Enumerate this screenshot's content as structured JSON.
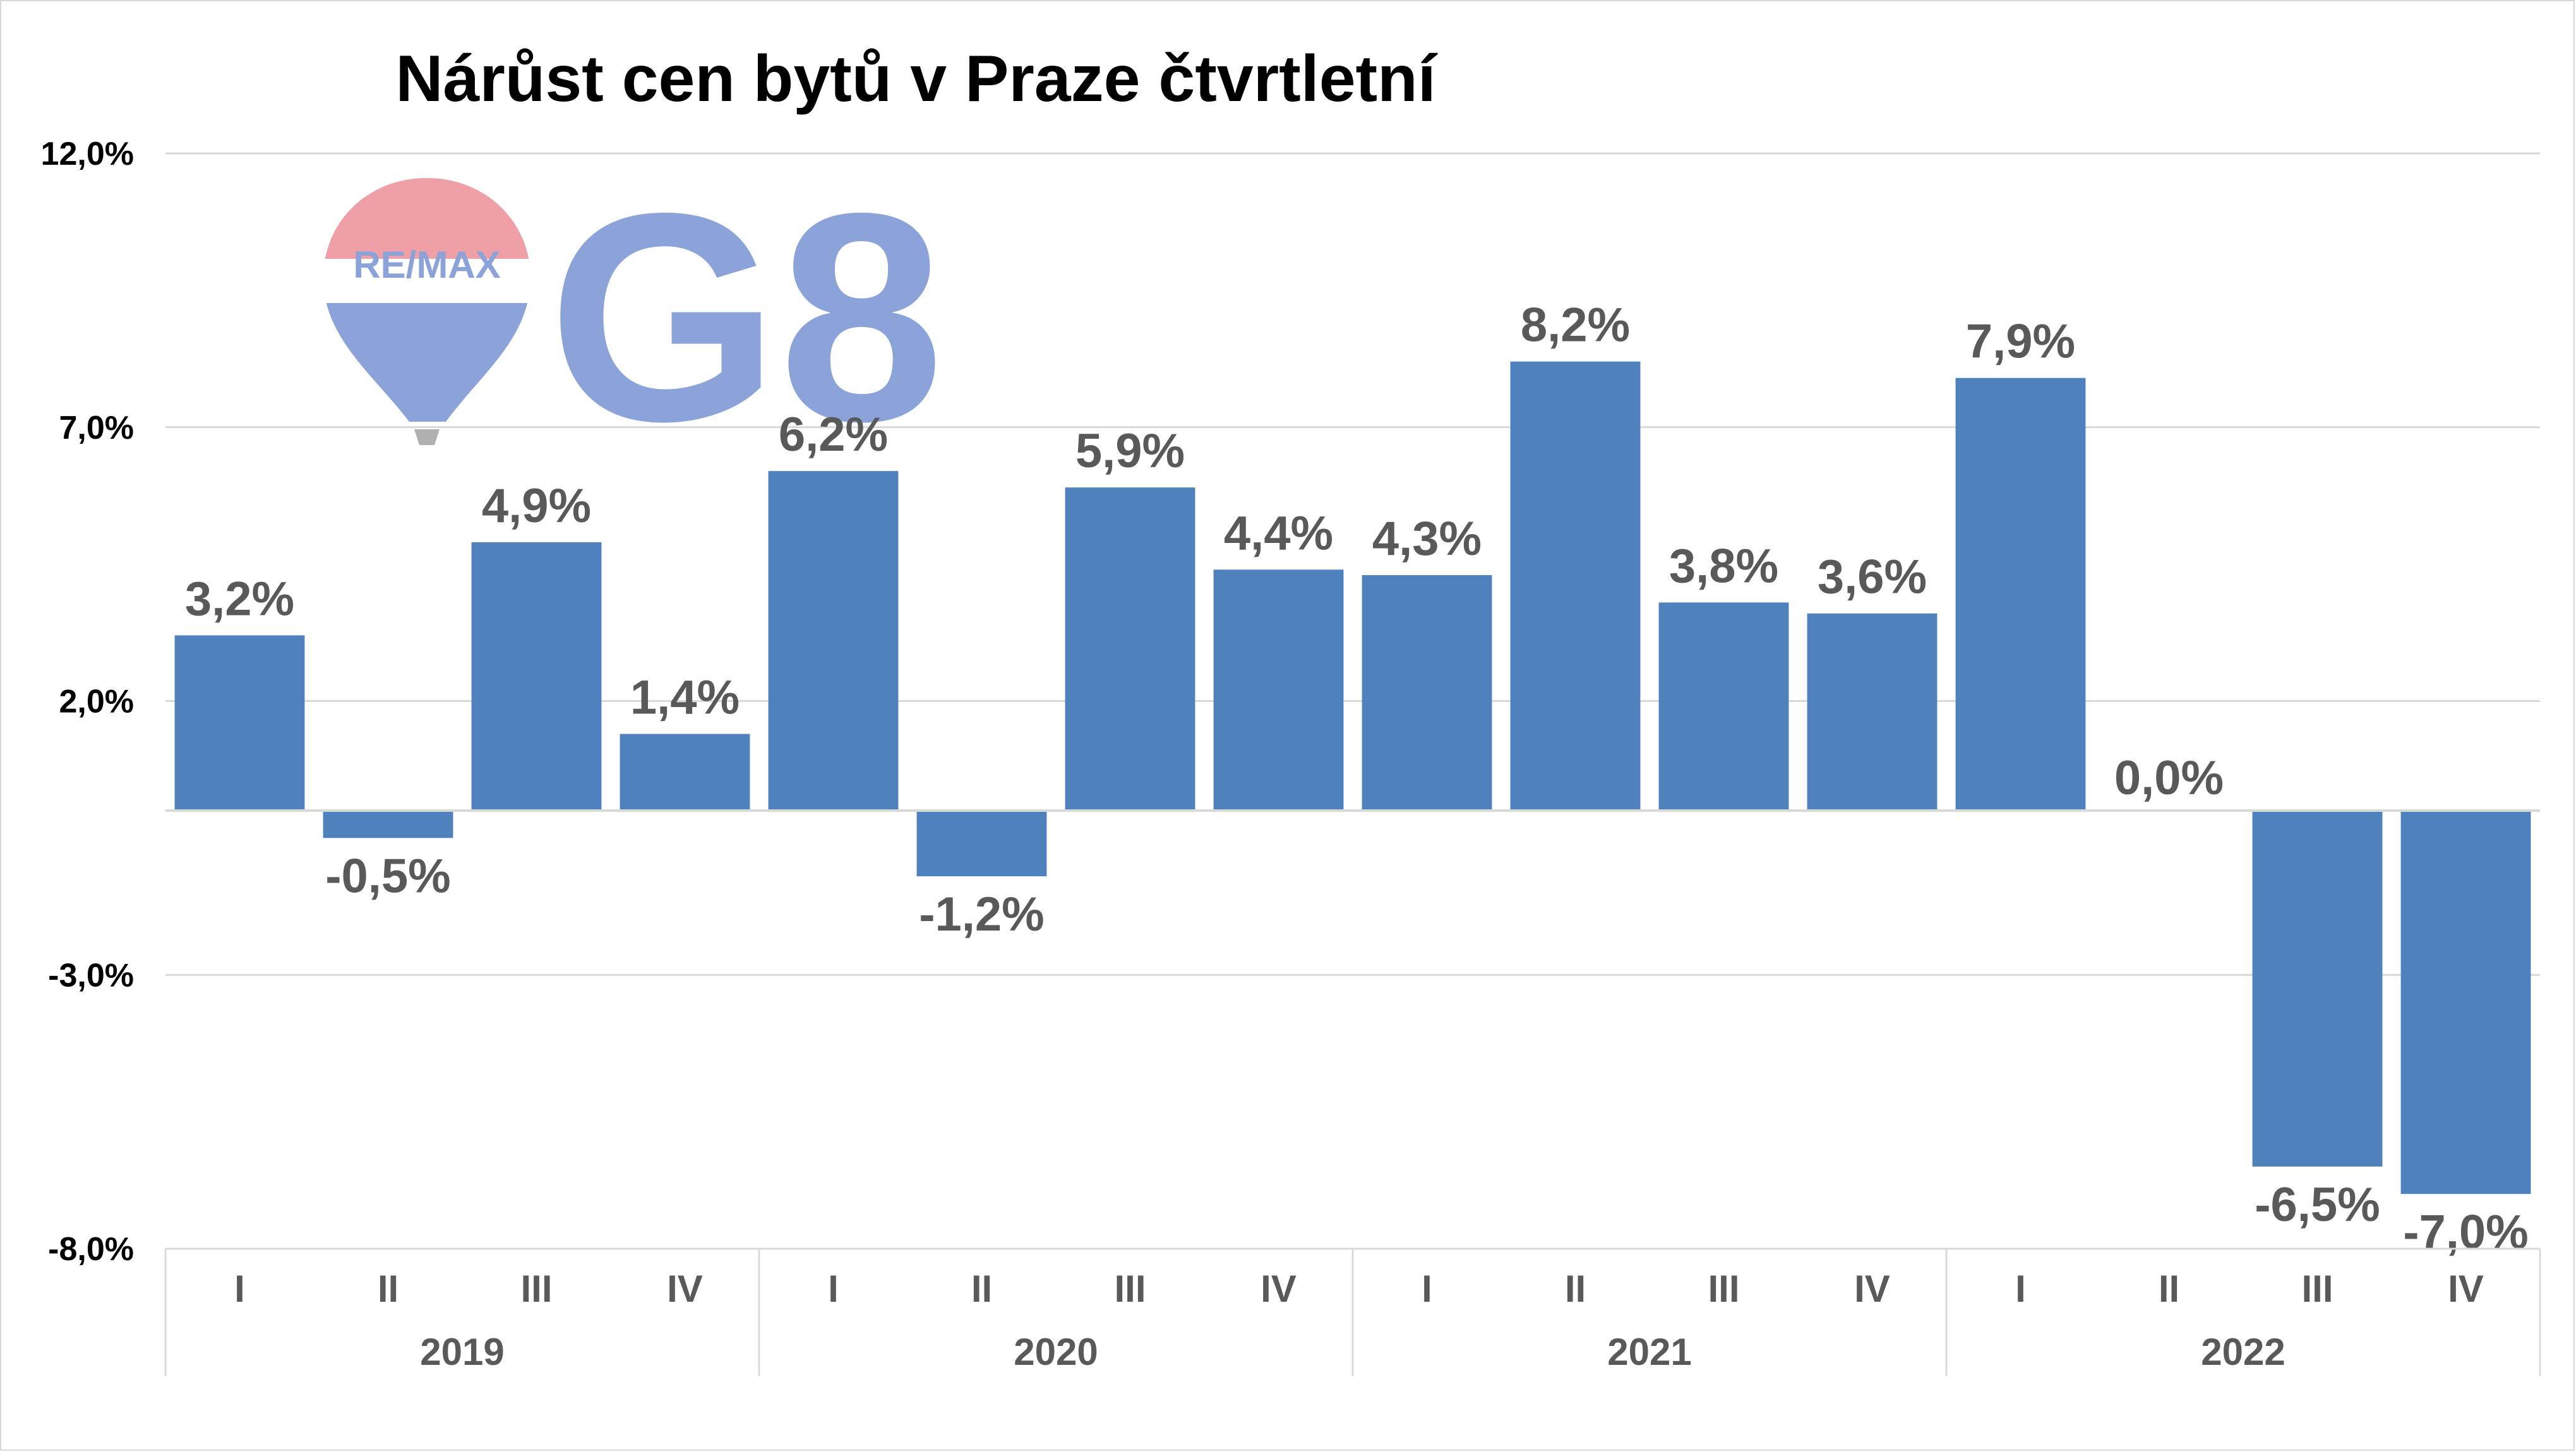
{
  "chart_data": {
    "type": "bar",
    "title": "Nárůst cen bytů v Praze čtvrtletní",
    "ylim": [
      -8.0,
      12.0
    ],
    "yticks": [
      "12,0%",
      "7,0%",
      "2,0%",
      "-3,0%",
      "-8,0%"
    ],
    "ytick_values": [
      12.0,
      7.0,
      2.0,
      -3.0,
      -8.0
    ],
    "grid": true,
    "legend": "none",
    "bar_color": "#4f81bd",
    "categories": [
      {
        "quarter": "I",
        "year": "2019"
      },
      {
        "quarter": "II",
        "year": "2019"
      },
      {
        "quarter": "III",
        "year": "2019"
      },
      {
        "quarter": "IV",
        "year": "2019"
      },
      {
        "quarter": "I",
        "year": "2020"
      },
      {
        "quarter": "II",
        "year": "2020"
      },
      {
        "quarter": "III",
        "year": "2020"
      },
      {
        "quarter": "IV",
        "year": "2020"
      },
      {
        "quarter": "I",
        "year": "2021"
      },
      {
        "quarter": "II",
        "year": "2021"
      },
      {
        "quarter": "III",
        "year": "2021"
      },
      {
        "quarter": "IV",
        "year": "2021"
      },
      {
        "quarter": "I",
        "year": "2022"
      },
      {
        "quarter": "II",
        "year": "2022"
      },
      {
        "quarter": "III",
        "year": "2022"
      },
      {
        "quarter": "IV",
        "year": "2022"
      }
    ],
    "years": [
      "2019",
      "2020",
      "2021",
      "2022"
    ],
    "values": [
      3.2,
      -0.5,
      4.9,
      1.4,
      6.2,
      -1.2,
      5.9,
      4.4,
      4.3,
      8.2,
      3.8,
      3.6,
      7.9,
      0.0,
      -6.5,
      -7.0
    ],
    "data_labels": [
      "3,2%",
      "-0,5%",
      "4,9%",
      "1,4%",
      "6,2%",
      "-1,2%",
      "5,9%",
      "4,4%",
      "4,3%",
      "8,2%",
      "3,8%",
      "3,6%",
      "7,9%",
      "0,0%",
      "-6,5%",
      "-7,0%"
    ]
  },
  "logo": {
    "remax_text": "RE/MAX",
    "g8_text": "G8",
    "balloon_top_color": "#eea0a6",
    "logo_color": "#8ba3d8"
  }
}
